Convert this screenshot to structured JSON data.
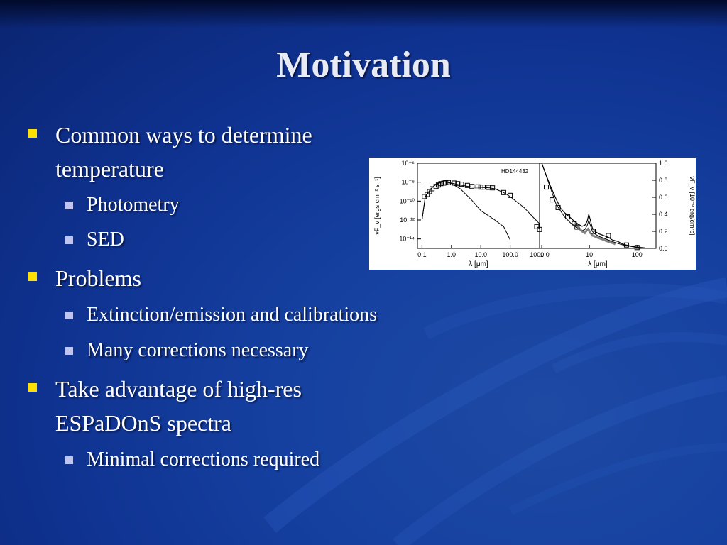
{
  "title": "Motivation",
  "bullets": [
    {
      "text": "Common ways to determine temperature",
      "subitems": [
        "Photometry",
        "SED"
      ]
    },
    {
      "text": "Problems",
      "subitems": [
        "Extinction/emission and calibrations",
        "Many corrections necessary"
      ]
    },
    {
      "text": "Take advantage of  high-res ESPaDOnS spectra",
      "subitems": [
        "Minimal corrections required"
      ]
    }
  ],
  "colors": {
    "background": "#1540a0",
    "bullet_level1": "#ffe000",
    "bullet_level2": "#c0c4f0",
    "text": "#ffffff"
  },
  "chart_data": [
    {
      "type": "line",
      "annotation": "HD144432",
      "xlabel": "λ [μm]",
      "ylabel": "νF_ν [ergs cm⁻² s⁻¹]",
      "xscale": "log",
      "yscale": "log",
      "xlim": [
        0.07,
        1000
      ],
      "ylim": [
        1e-15,
        1e-06
      ],
      "x_ticks": [
        "0.1",
        "1.0",
        "10.0",
        "100.0",
        "1000.0"
      ],
      "y_ticks": [
        "10⁻⁶",
        "10⁻⁸",
        "10⁻¹⁰",
        "10⁻¹²",
        "10⁻¹⁴"
      ],
      "series": [
        {
          "style": "photosphere model",
          "x": [
            0.1,
            0.13,
            0.2,
            0.3,
            0.5,
            0.7,
            1.0,
            2,
            5,
            10,
            30,
            60,
            100
          ],
          "y": [
            1e-12,
            3e-10,
            2e-09,
            6e-09,
            1.1e-08,
            1e-08,
            7e-09,
            2e-09,
            1.2e-10,
            1e-11,
            1e-12,
            2e-13,
            8e-15
          ]
        },
        {
          "style": "total model",
          "x": [
            0.1,
            0.13,
            0.2,
            0.3,
            0.5,
            0.7,
            1.0,
            2,
            5,
            10,
            20,
            30,
            60,
            100,
            300,
            600,
            1000
          ],
          "y": [
            1e-12,
            3e-10,
            2e-09,
            6e-09,
            1.1e-08,
            1e-08,
            8e-09,
            5e-09,
            3e-09,
            2.8e-09,
            2.5e-09,
            2e-09,
            8e-10,
            3e-10,
            2e-11,
            2e-12,
            4e-13
          ]
        },
        {
          "style": "photometry points",
          "x": [
            0.12,
            0.15,
            0.18,
            0.22,
            0.3,
            0.36,
            0.44,
            0.55,
            0.64,
            0.79,
            1.25,
            1.65,
            2.2,
            3.5,
            5,
            8,
            10,
            12,
            18,
            25,
            60,
            100,
            800,
            1000
          ],
          "y": [
            3e-10,
            5e-10,
            1e-09,
            2e-09,
            3.5e-09,
            5e-09,
            7e-09,
            8e-09,
            9e-09,
            9e-09,
            8e-09,
            7e-09,
            6e-09,
            4.5e-09,
            3.5e-09,
            3.2e-09,
            3e-09,
            3e-09,
            2.8e-09,
            2.5e-09,
            8e-10,
            4e-10,
            2e-13,
            1e-13
          ]
        }
      ]
    },
    {
      "type": "line",
      "xlabel": "λ [μm]",
      "ylabel": "νF_ν [10⁻⁸ erg/cm²s]",
      "xscale": "log",
      "xlim": [
        0.9,
        250
      ],
      "ylim": [
        0,
        1.0
      ],
      "x_ticks": [
        "1",
        "10",
        "100"
      ],
      "y_ticks": [
        "1.0",
        "0.8",
        "0.6",
        "0.4",
        "0.2",
        "0.0"
      ],
      "series": [
        {
          "style": "model",
          "x": [
            1.0,
            1.2,
            1.5,
            2,
            2.5,
            3,
            4,
            5,
            6,
            7,
            8,
            9,
            9.7,
            10.5,
            11.5,
            13,
            16,
            20,
            25,
            30,
            40,
            50,
            70,
            100,
            150
          ],
          "y": [
            1.0,
            0.88,
            0.74,
            0.58,
            0.47,
            0.42,
            0.36,
            0.31,
            0.28,
            0.26,
            0.27,
            0.32,
            0.4,
            0.33,
            0.24,
            0.2,
            0.17,
            0.15,
            0.13,
            0.1,
            0.08,
            0.05,
            0.03,
            0.015,
            0.005
          ]
        },
        {
          "style": "model 2",
          "x": [
            1.0,
            1.5,
            2,
            3,
            4,
            5,
            6,
            7,
            8,
            9,
            9.7,
            10.5,
            11.5,
            13,
            16,
            20,
            30,
            50,
            100,
            150
          ],
          "y": [
            1.0,
            0.72,
            0.52,
            0.37,
            0.3,
            0.26,
            0.23,
            0.21,
            0.22,
            0.27,
            0.33,
            0.27,
            0.2,
            0.17,
            0.14,
            0.12,
            0.08,
            0.04,
            0.01,
            0.003
          ]
        },
        {
          "style": "spectrum",
          "x": [
            5,
            5.5,
            6,
            6.5,
            7,
            7.5,
            8,
            8.5,
            9,
            9.5,
            10,
            10.5,
            11,
            11.5,
            12,
            13,
            14,
            16,
            18,
            20,
            22,
            25,
            28,
            32,
            35
          ],
          "y": [
            0.3,
            0.27,
            0.24,
            0.22,
            0.2,
            0.19,
            0.18,
            0.2,
            0.22,
            0.23,
            0.2,
            0.18,
            0.17,
            0.15,
            0.15,
            0.14,
            0.13,
            0.12,
            0.11,
            0.1,
            0.09,
            0.08,
            0.07,
            0.06,
            0.05
          ]
        },
        {
          "style": "photometry points",
          "x": [
            1.25,
            1.65,
            2.2,
            3.5,
            4.8,
            5.5,
            12,
            25,
            60,
            100
          ],
          "y": [
            0.72,
            0.57,
            0.48,
            0.37,
            0.29,
            0.25,
            0.2,
            0.15,
            0.04,
            0.01
          ]
        }
      ]
    }
  ]
}
